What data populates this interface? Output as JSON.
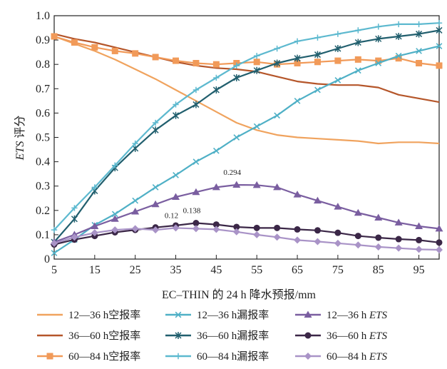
{
  "chart_data": {
    "type": "line",
    "title": "",
    "xlabel": "EC–THIN 的 24 h 降水预报/mm",
    "ylabel_italic": "ETS",
    "ylabel_rest": " 评分",
    "xlim": [
      5,
      100
    ],
    "ylim": [
      0,
      1.0
    ],
    "x": [
      5,
      10,
      15,
      20,
      25,
      30,
      35,
      40,
      45,
      50,
      55,
      60,
      65,
      70,
      75,
      80,
      85,
      90,
      95,
      100
    ],
    "x_ticks": [
      5,
      15,
      25,
      35,
      45,
      55,
      65,
      75,
      85,
      95
    ],
    "x_tick_labels": [
      "5",
      "15",
      "25",
      "35",
      "45",
      "55",
      "65",
      "75",
      "85",
      "95"
    ],
    "y_ticks": [
      0,
      0.1,
      0.2,
      0.3,
      0.4,
      0.5,
      0.6,
      0.7,
      0.8,
      0.9,
      1.0
    ],
    "y_tick_labels": [
      "0",
      "0.1",
      "0.2",
      "0.3",
      "0.4",
      "0.5",
      "0.6",
      "0.7",
      "0.8",
      "0.9",
      "1.0"
    ],
    "series": [
      {
        "name": "12—36 h空报率",
        "legend_pre": "12—36 h空报率",
        "legend_italic": "",
        "color": "#f0a35e",
        "marker": "none",
        "values": [
          0.915,
          0.885,
          0.855,
          0.82,
          0.78,
          0.74,
          0.695,
          0.65,
          0.605,
          0.56,
          0.53,
          0.51,
          0.5,
          0.495,
          0.49,
          0.485,
          0.475,
          0.48,
          0.48,
          0.475
        ]
      },
      {
        "name": "36—60 h空报率",
        "legend_pre": "36—60 h空报率",
        "legend_italic": "",
        "color": "#b5562a",
        "marker": "none",
        "values": [
          0.925,
          0.905,
          0.89,
          0.87,
          0.85,
          0.83,
          0.81,
          0.795,
          0.785,
          0.78,
          0.77,
          0.75,
          0.73,
          0.72,
          0.715,
          0.715,
          0.705,
          0.675,
          0.66,
          0.645
        ]
      },
      {
        "name": "60—84 h空报率",
        "legend_pre": "60—84 h空报率",
        "legend_italic": "",
        "color": "#f19a59",
        "marker": "square",
        "values": [
          0.915,
          0.89,
          0.87,
          0.855,
          0.845,
          0.83,
          0.815,
          0.805,
          0.8,
          0.805,
          0.81,
          0.8,
          0.805,
          0.81,
          0.815,
          0.82,
          0.815,
          0.825,
          0.805,
          0.795
        ]
      },
      {
        "name": "12—36 h漏报率",
        "legend_pre": "12—36 h漏报率",
        "legend_italic": "",
        "color": "#4fb0c6",
        "marker": "x",
        "values": [
          0.025,
          0.08,
          0.14,
          0.185,
          0.24,
          0.295,
          0.345,
          0.4,
          0.445,
          0.5,
          0.545,
          0.59,
          0.65,
          0.695,
          0.735,
          0.775,
          0.805,
          0.835,
          0.855,
          0.875
        ]
      },
      {
        "name": "36—60 h漏报率",
        "legend_pre": "36—60 h漏报率",
        "legend_italic": "",
        "color": "#215f6e",
        "marker": "star",
        "values": [
          0.07,
          0.165,
          0.28,
          0.375,
          0.455,
          0.53,
          0.59,
          0.635,
          0.695,
          0.745,
          0.775,
          0.805,
          0.825,
          0.84,
          0.865,
          0.89,
          0.905,
          0.915,
          0.925,
          0.94
        ]
      },
      {
        "name": "60—84 h漏报率",
        "legend_pre": "60—84 h漏报率",
        "legend_italic": "",
        "color": "#5db9cf",
        "marker": "plus",
        "values": [
          0.12,
          0.21,
          0.295,
          0.385,
          0.475,
          0.56,
          0.635,
          0.695,
          0.745,
          0.795,
          0.835,
          0.865,
          0.895,
          0.91,
          0.925,
          0.94,
          0.955,
          0.965,
          0.965,
          0.97
        ]
      },
      {
        "name": "12—36 h ETS",
        "legend_pre": "12—36 h ",
        "legend_italic": "ETS",
        "color": "#7a5ea0",
        "marker": "triangle",
        "values": [
          0.07,
          0.1,
          0.135,
          0.165,
          0.195,
          0.225,
          0.255,
          0.275,
          0.295,
          0.305,
          0.304,
          0.295,
          0.265,
          0.24,
          0.215,
          0.19,
          0.17,
          0.15,
          0.135,
          0.125
        ]
      },
      {
        "name": "36—60 h ETS",
        "legend_pre": "36—60 h ",
        "legend_italic": "ETS",
        "color": "#3b2747",
        "marker": "circle",
        "values": [
          0.06,
          0.08,
          0.095,
          0.11,
          0.12,
          0.13,
          0.138,
          0.148,
          0.142,
          0.132,
          0.128,
          0.128,
          0.122,
          0.118,
          0.108,
          0.095,
          0.088,
          0.082,
          0.078,
          0.068
        ]
      },
      {
        "name": "60—84 h ETS",
        "legend_pre": "60—84 h ",
        "legend_italic": "ETS",
        "color": "#a993c7",
        "marker": "diamond",
        "values": [
          0.065,
          0.09,
          0.108,
          0.12,
          0.125,
          0.12,
          0.128,
          0.125,
          0.122,
          0.112,
          0.1,
          0.09,
          0.078,
          0.072,
          0.065,
          0.058,
          0.05,
          0.045,
          0.04,
          0.038
        ]
      }
    ],
    "annotations": [
      {
        "text": "0.294",
        "x": 50,
        "y": 0.305
      },
      {
        "text": "0.138",
        "x": 40,
        "y": 0.148
      },
      {
        "text": "0.12",
        "x": 35,
        "y": 0.128
      }
    ],
    "legend_position": "bottom"
  }
}
